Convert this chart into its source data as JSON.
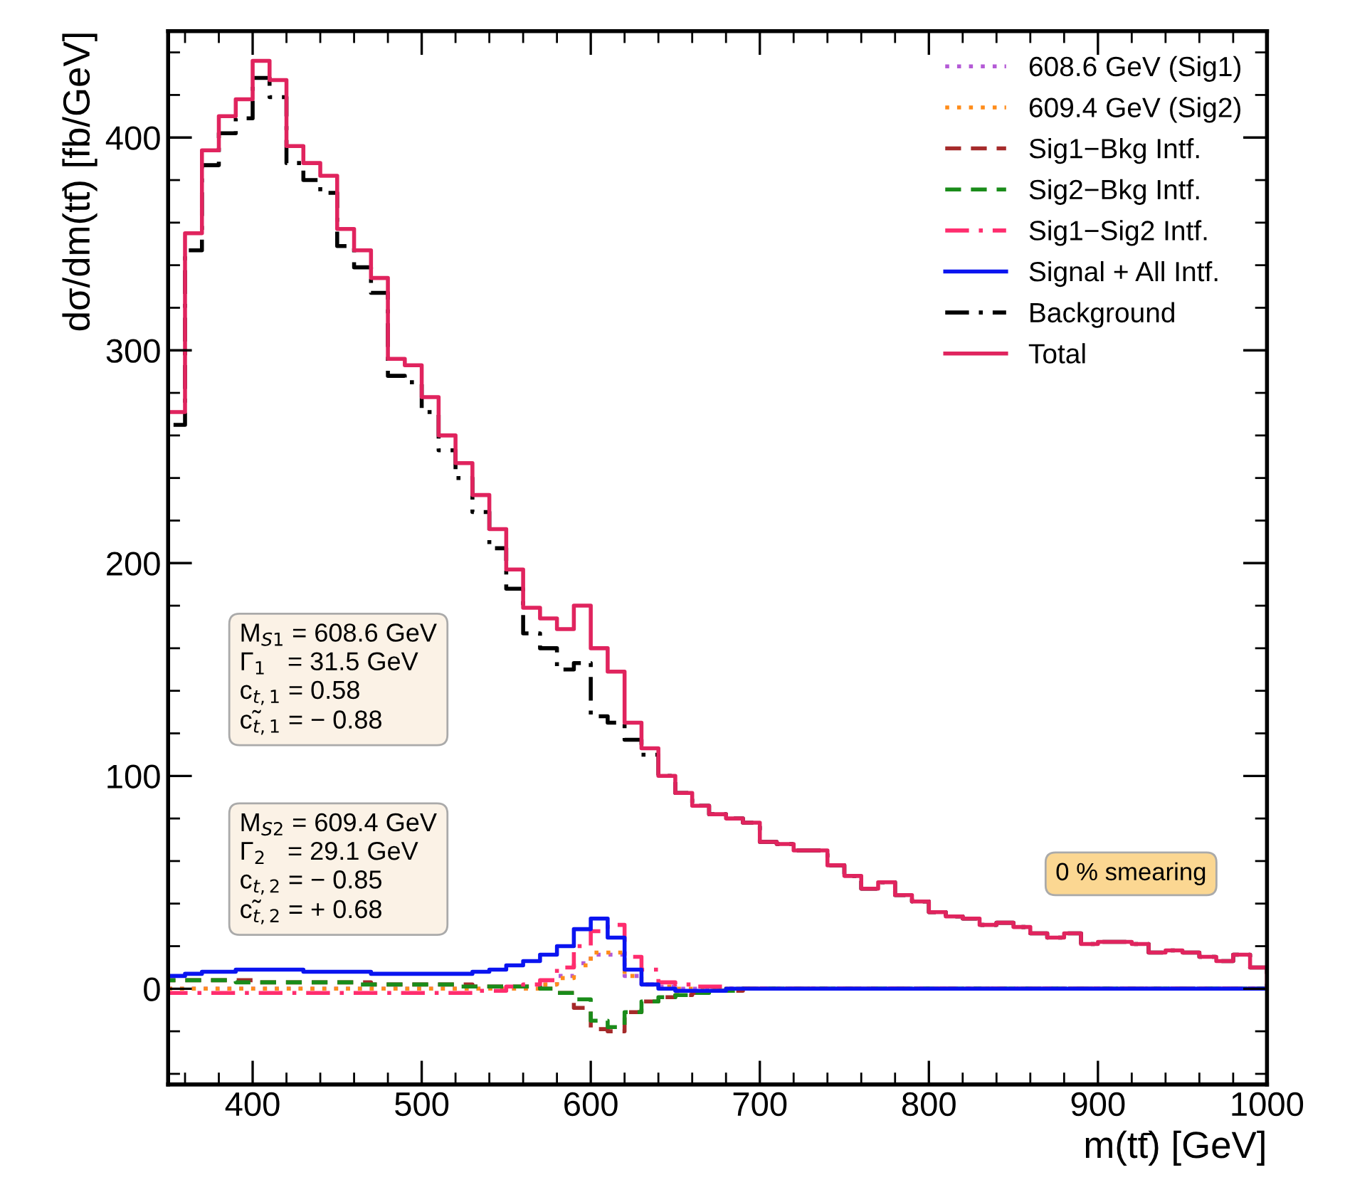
{
  "chart_data": {
    "type": "histogram",
    "xlabel": "m(tt̄) [GeV]",
    "ylabel": "dσ/dm(tt̄) [fb/GeV]",
    "bins": [
      350,
      360,
      370,
      380,
      390,
      400,
      410,
      420,
      430,
      440,
      450,
      460,
      470,
      480,
      490,
      500,
      510,
      520,
      530,
      540,
      550,
      560,
      570,
      580,
      590,
      600,
      610,
      620,
      630,
      640,
      650,
      660,
      670,
      680,
      690,
      700,
      710,
      720,
      730,
      740,
      750,
      760,
      770,
      780,
      790,
      800,
      810,
      820,
      830,
      840,
      850,
      860,
      870,
      880,
      890,
      900,
      910,
      920,
      930,
      940,
      950,
      960,
      970,
      980,
      990,
      1000
    ],
    "xlim": [
      350,
      1000
    ],
    "ylim": [
      -45,
      450
    ],
    "xticks": [
      400,
      500,
      600,
      700,
      800,
      900,
      1000
    ],
    "yticks": [
      0,
      100,
      200,
      300,
      400
    ],
    "legend": "top right",
    "grid": false,
    "series": [
      {
        "name": "608.6 GeV (Sig1)",
        "color": "#b45ad6",
        "line_style": "dotted",
        "values": [
          0,
          0,
          0,
          0,
          0,
          0,
          0,
          0,
          0,
          0,
          0,
          0,
          0,
          0,
          0,
          0,
          0,
          0,
          0,
          0,
          0,
          0,
          2,
          6,
          12,
          16,
          16,
          6,
          2,
          1,
          0,
          0,
          0,
          0,
          0,
          0,
          0,
          0,
          0,
          0,
          0,
          0,
          0,
          0,
          0,
          0,
          0,
          0,
          0,
          0,
          0,
          0,
          0,
          0,
          0,
          0,
          0,
          0,
          0,
          0,
          0,
          0,
          0,
          0,
          0
        ]
      },
      {
        "name": "609.4 GeV (Sig2)",
        "color": "#ff8c1a",
        "line_style": "dotted",
        "values": [
          0,
          0,
          0,
          0,
          0,
          0,
          0,
          0,
          0,
          0,
          0,
          0,
          0,
          0,
          0,
          0,
          0,
          0,
          0,
          0,
          0,
          0,
          2,
          5,
          11,
          17,
          17,
          6,
          2,
          1,
          0,
          0,
          0,
          0,
          0,
          0,
          0,
          0,
          0,
          0,
          0,
          0,
          0,
          0,
          0,
          0,
          0,
          0,
          0,
          0,
          0,
          0,
          0,
          0,
          0,
          0,
          0,
          0,
          0,
          0,
          0,
          0,
          0,
          0,
          0
        ]
      },
      {
        "name": "Sig1−Bkg Intf.",
        "color": "#a52a2a",
        "line_style": "dashed",
        "values": [
          4,
          4,
          4,
          4,
          4,
          3,
          3,
          3,
          3,
          3,
          3,
          3,
          2,
          2,
          2,
          2,
          2,
          2,
          1,
          1,
          1,
          1,
          0,
          -2,
          -9,
          -19,
          -20,
          -11,
          -6,
          -4,
          -3,
          -2,
          -1,
          -1,
          0,
          0,
          0,
          0,
          0,
          0,
          0,
          0,
          0,
          0,
          0,
          0,
          0,
          0,
          0,
          0,
          0,
          0,
          0,
          0,
          0,
          0,
          0,
          0,
          0,
          0,
          0,
          0,
          0,
          0,
          0
        ]
      },
      {
        "name": "Sig2−Bkg Intf.",
        "color": "#1a8c1a",
        "line_style": "dashed",
        "values": [
          4,
          4,
          4,
          4,
          3,
          3,
          3,
          3,
          3,
          3,
          3,
          2,
          2,
          2,
          2,
          2,
          2,
          1,
          1,
          1,
          1,
          1,
          0,
          -2,
          -5,
          -15,
          -18,
          -11,
          -6,
          -4,
          -3,
          -2,
          -1,
          -1,
          0,
          0,
          0,
          0,
          0,
          0,
          0,
          0,
          0,
          0,
          0,
          0,
          0,
          0,
          0,
          0,
          0,
          0,
          0,
          0,
          0,
          0,
          0,
          0,
          0,
          0,
          0,
          0,
          0,
          0,
          0
        ]
      },
      {
        "name": "Sig1−Sig2 Intf.",
        "color": "#ff2d6e",
        "line_style": "dashdot",
        "values": [
          -2,
          -2,
          -2,
          -2,
          -2,
          -2,
          -2,
          -2,
          -2,
          -2,
          -2,
          -2,
          -2,
          -2,
          -2,
          -2,
          -2,
          -2,
          -1,
          -1,
          1,
          2,
          4,
          10,
          20,
          27,
          30,
          15,
          9,
          3,
          2,
          1,
          1,
          0,
          0,
          0,
          0,
          0,
          0,
          0,
          0,
          0,
          0,
          0,
          0,
          0,
          0,
          0,
          0,
          0,
          0,
          0,
          0,
          0,
          0,
          0,
          0,
          0,
          0,
          0,
          0,
          0,
          0,
          0,
          0
        ]
      },
      {
        "name": "Signal + All Intf.",
        "color": "#0a14f0",
        "line_style": "solid",
        "values": [
          6,
          7,
          8,
          8,
          9,
          9,
          9,
          9,
          8,
          8,
          8,
          8,
          7,
          7,
          7,
          7,
          7,
          7,
          8,
          9,
          11,
          13,
          16,
          20,
          28,
          33,
          24,
          9,
          2,
          0,
          -1,
          -1,
          -1,
          0,
          0,
          0,
          0,
          0,
          0,
          0,
          0,
          0,
          0,
          0,
          0,
          0,
          0,
          0,
          0,
          0,
          0,
          0,
          0,
          0,
          0,
          0,
          0,
          0,
          0,
          0,
          0,
          0,
          0,
          0,
          0
        ]
      },
      {
        "name": "Background",
        "color": "#000000",
        "line_style": "dashdot",
        "values": [
          265,
          347,
          387,
          402,
          409,
          428,
          419,
          388,
          380,
          374,
          349,
          339,
          327,
          288,
          285,
          271,
          253,
          240,
          224,
          207,
          188,
          167,
          160,
          150,
          153,
          128,
          125,
          117,
          110,
          100,
          92,
          86,
          82,
          80,
          78,
          69,
          68,
          65,
          65,
          58,
          53,
          47,
          50,
          44,
          41,
          36,
          34,
          33,
          30,
          31,
          29,
          26,
          24,
          26,
          21,
          22,
          22,
          21,
          17,
          18,
          17,
          15,
          13,
          16,
          10
        ]
      },
      {
        "name": "Total",
        "color": "#e0245e",
        "line_style": "solid",
        "values": [
          271,
          355,
          394,
          410,
          418,
          436,
          427,
          396,
          388,
          382,
          357,
          347,
          334,
          296,
          293,
          278,
          260,
          247,
          232,
          216,
          197,
          179,
          174,
          169,
          180,
          160,
          149,
          125,
          113,
          100,
          92,
          86,
          82,
          80,
          78,
          69,
          68,
          65,
          65,
          58,
          53,
          47,
          50,
          44,
          41,
          36,
          34,
          33,
          30,
          31,
          29,
          26,
          24,
          26,
          21,
          22,
          22,
          21,
          17,
          18,
          17,
          15,
          13,
          16,
          10
        ]
      }
    ],
    "annotations": [
      "M$_{S1}$ = 608.6 GeV\nΓ$_{1}$   = 31.5 GeV\nc$_{t,1}$ = 0.58\nc̃$_{t,1}$ = − 0.88",
      "M$_{S2}$ = 609.4 GeV\nΓ$_{2}$   = 29.1 GeV\nc$_{t,2}$ = − 0.85\nc̃$_{t,2}$ = + 0.68",
      "0 % smearing"
    ]
  }
}
